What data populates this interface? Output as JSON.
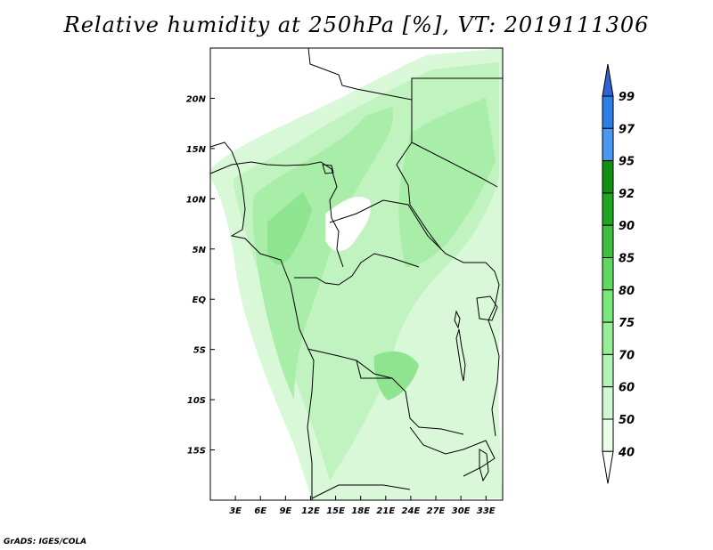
{
  "title": "Relative humidity at 250hPa [%], VT: 2019111306",
  "credit": "GrADS: IGES/COLA",
  "map": {
    "lon_range": [
      0,
      35
    ],
    "lat_range": [
      -20,
      25
    ],
    "projection": "latlon",
    "region": "Central / West Africa",
    "x_tick_labels": [
      "3E",
      "6E",
      "9E",
      "12E",
      "15E",
      "18E",
      "21E",
      "24E",
      "27E",
      "30E",
      "33E"
    ],
    "y_tick_labels": [
      "20N",
      "15N",
      "10N",
      "5N",
      "EQ",
      "5S",
      "10S",
      "15S"
    ],
    "fill_levels_present": [
      "40-50",
      "50-60",
      "60-70",
      "70-75"
    ],
    "coastlines": true,
    "country_borders": true
  },
  "colorbar": {
    "orientation": "vertical",
    "labels": [
      "99",
      "97",
      "95",
      "92",
      "90",
      "85",
      "80",
      "75",
      "70",
      "60",
      "50",
      "40"
    ],
    "colors": [
      "#2c63d7",
      "#2e7ee8",
      "#4a98f0",
      "#118f11",
      "#1fa51f",
      "#3fbf3f",
      "#5fd85f",
      "#78e878",
      "#96ef96",
      "#b3f3b3",
      "#d2f7d2",
      "#eaffea",
      "#ffffff"
    ]
  }
}
